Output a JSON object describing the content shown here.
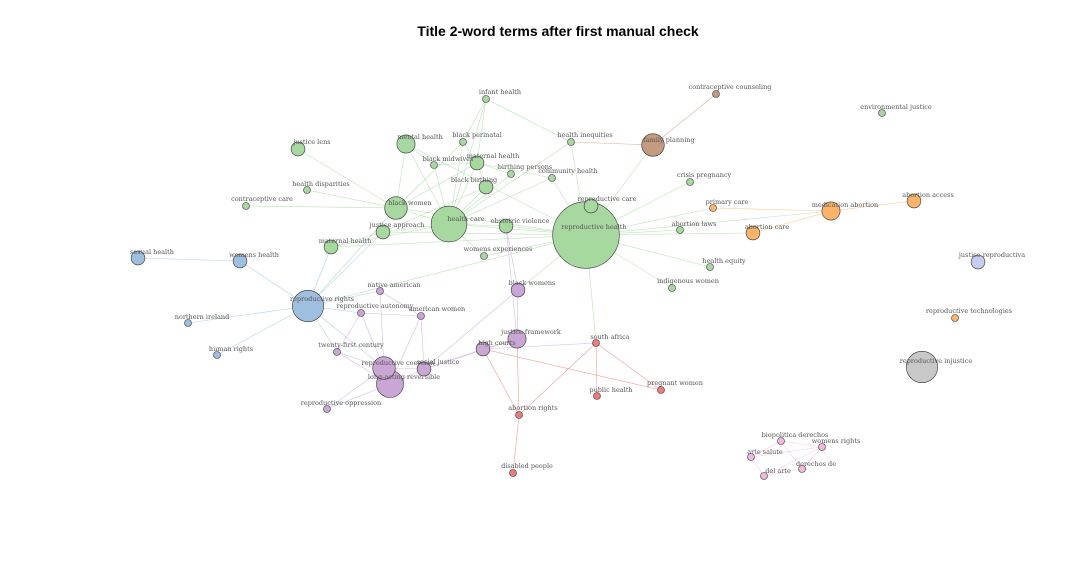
{
  "title": "Title 2-word terms after first manual check",
  "colors": {
    "green": "#a6d8a0",
    "orange": "#fdb46a",
    "blue": "#9ebfe0",
    "purple": "#c9a6d6",
    "red": "#f07a7a",
    "brown": "#c49a80",
    "pink": "#f3b8dd",
    "lavender": "#c7cdf0",
    "gray": "#c8c8c8"
  },
  "nodes": [
    {
      "id": "infant-health",
      "label": "infant health",
      "group": "green",
      "size": 1
    },
    {
      "id": "mental-health",
      "label": "mental health",
      "group": "green",
      "size": 3
    },
    {
      "id": "black-perinatal",
      "label": "black perinatal",
      "group": "green",
      "size": 1
    },
    {
      "id": "health-inequities",
      "label": "health inequities",
      "group": "green",
      "size": 1
    },
    {
      "id": "justice-lens",
      "label": "justice lens",
      "group": "green",
      "size": 2
    },
    {
      "id": "black-midwives",
      "label": "black midwives",
      "group": "green",
      "size": 1
    },
    {
      "id": "maternal-health-1",
      "label": "maternal health",
      "group": "green",
      "size": 2
    },
    {
      "id": "birthing-persons",
      "label": "birthing persons",
      "group": "green",
      "size": 1
    },
    {
      "id": "community-health",
      "label": "community health",
      "group": "green",
      "size": 1
    },
    {
      "id": "black-birthing",
      "label": "black birthing",
      "group": "green",
      "size": 2
    },
    {
      "id": "health-disparities",
      "label": "health disparities",
      "group": "green",
      "size": 1
    },
    {
      "id": "crisis-pregnancy",
      "label": "crisis pregnancy",
      "group": "green",
      "size": 1
    },
    {
      "id": "contraceptive-care",
      "label": "contraceptive care",
      "group": "green",
      "size": 1
    },
    {
      "id": "black-women",
      "label": "black women",
      "group": "green",
      "size": 4
    },
    {
      "id": "health-care",
      "label": "health care",
      "group": "green",
      "size": 7
    },
    {
      "id": "obstetric-violence",
      "label": "obstetric violence",
      "group": "green",
      "size": 2
    },
    {
      "id": "reproductive-care",
      "label": "reproductive care",
      "group": "green",
      "size": 2
    },
    {
      "id": "reproductive-health",
      "label": "reproductive health",
      "group": "green",
      "size": 14
    },
    {
      "id": "justice-approach",
      "label": "justice approach",
      "group": "green",
      "size": 2
    },
    {
      "id": "abortion-laws",
      "label": "abortion laws",
      "group": "green",
      "size": 1
    },
    {
      "id": "maternal-health-2",
      "label": "maternal health",
      "group": "green",
      "size": 2
    },
    {
      "id": "womens-experiences",
      "label": "womens experiences",
      "group": "green",
      "size": 1
    },
    {
      "id": "health-equity",
      "label": "health equity",
      "group": "green",
      "size": 1
    },
    {
      "id": "indigenous-women",
      "label": "indigenous women",
      "group": "green",
      "size": 1
    },
    {
      "id": "family-planning",
      "label": "family planning",
      "group": "brown",
      "size": 4
    },
    {
      "id": "contraceptive-counseling",
      "label": "contraceptive counseling",
      "group": "brown",
      "size": 1
    },
    {
      "id": "primary-care",
      "label": "primary care",
      "group": "orange",
      "size": 1
    },
    {
      "id": "medication-abortion",
      "label": "medication abortion",
      "group": "orange",
      "size": 3
    },
    {
      "id": "abortion-access",
      "label": "abortion access",
      "group": "orange",
      "size": 2
    },
    {
      "id": "abortion-care",
      "label": "abortion care",
      "group": "orange",
      "size": 2
    },
    {
      "id": "sexual-health",
      "label": "sexual health",
      "group": "blue",
      "size": 2
    },
    {
      "id": "womens-health",
      "label": "womens health",
      "group": "blue",
      "size": 2
    },
    {
      "id": "reproductive-rights",
      "label": "reproductive rights",
      "group": "blue",
      "size": 6
    },
    {
      "id": "northern-ireland",
      "label": "northern ireland",
      "group": "blue",
      "size": 1
    },
    {
      "id": "human-rights",
      "label": "human rights",
      "group": "blue",
      "size": 1
    },
    {
      "id": "native-american",
      "label": "native american",
      "group": "purple",
      "size": 1
    },
    {
      "id": "black-womens",
      "label": "black womens",
      "group": "purple",
      "size": 2
    },
    {
      "id": "reproductive-autonomy",
      "label": "reproductive autonomy",
      "group": "purple",
      "size": 1
    },
    {
      "id": "american-women",
      "label": "american women",
      "group": "purple",
      "size": 1
    },
    {
      "id": "justice-framework",
      "label": "justice framework",
      "group": "purple",
      "size": 3
    },
    {
      "id": "twenty-first-century",
      "label": "twenty-first century",
      "group": "purple",
      "size": 1
    },
    {
      "id": "high-courts",
      "label": "high courts",
      "group": "purple",
      "size": 2
    },
    {
      "id": "reproductive-coercion",
      "label": "reproductive coercion",
      "group": "purple",
      "size": 4
    },
    {
      "id": "social-justice",
      "label": "social justice",
      "group": "purple",
      "size": 2
    },
    {
      "id": "long-acting-reversible",
      "label": "long-acting reversible",
      "group": "purple",
      "size": 5
    },
    {
      "id": "reproductive-oppression",
      "label": "reproductive oppression",
      "group": "purple",
      "size": 1
    },
    {
      "id": "south-africa",
      "label": "south africa",
      "group": "red",
      "size": 1
    },
    {
      "id": "pregnant-women",
      "label": "pregnant women",
      "group": "red",
      "size": 1
    },
    {
      "id": "public-health",
      "label": "public health",
      "group": "red",
      "size": 1
    },
    {
      "id": "abortion-rights",
      "label": "abortion rights",
      "group": "red",
      "size": 1
    },
    {
      "id": "disabled-people",
      "label": "disabled people",
      "group": "red",
      "size": 1
    },
    {
      "id": "environmental-justice",
      "label": "environmental justice",
      "group": "green",
      "size": 1
    },
    {
      "id": "justice-reproductiva",
      "label": "justice reproductiva",
      "group": "lavender",
      "size": 2
    },
    {
      "id": "reproductive-technologies",
      "label": "reproductive technologies",
      "group": "orange",
      "size": 1
    },
    {
      "id": "reproductive-injustice",
      "label": "reproductive injustice",
      "group": "gray",
      "size": 6
    },
    {
      "id": "biopolitica-derechos",
      "label": "biopolitica derechos",
      "group": "pink",
      "size": 1
    },
    {
      "id": "womens-rights",
      "label": "womens rights",
      "group": "pink",
      "size": 1
    },
    {
      "id": "arte-salute",
      "label": "arte salute",
      "group": "pink",
      "size": 1
    },
    {
      "id": "derechos-de",
      "label": "derechos de",
      "group": "pink",
      "size": 1
    },
    {
      "id": "del-arte",
      "label": "del arte",
      "group": "pink",
      "size": 1
    }
  ],
  "edges": [
    [
      "reproductive-health",
      "health-care"
    ],
    [
      "reproductive-health",
      "black-women"
    ],
    [
      "reproductive-health",
      "obstetric-violence"
    ],
    [
      "reproductive-health",
      "reproductive-care"
    ],
    [
      "reproductive-health",
      "family-planning"
    ],
    [
      "reproductive-health",
      "crisis-pregnancy"
    ],
    [
      "reproductive-health",
      "primary-care"
    ],
    [
      "reproductive-health",
      "abortion-laws"
    ],
    [
      "reproductive-health",
      "abortion-care"
    ],
    [
      "reproductive-health",
      "medication-abortion"
    ],
    [
      "reproductive-health",
      "health-equity"
    ],
    [
      "reproductive-health",
      "indigenous-women"
    ],
    [
      "reproductive-health",
      "womens-experiences"
    ],
    [
      "reproductive-health",
      "reproductive-rights"
    ],
    [
      "reproductive-health",
      "black-womens"
    ],
    [
      "reproductive-health",
      "south-africa"
    ],
    [
      "reproductive-health",
      "justice-approach"
    ],
    [
      "reproductive-health",
      "mental-health"
    ],
    [
      "reproductive-health",
      "health-inequities"
    ],
    [
      "reproductive-health",
      "community-health"
    ],
    [
      "reproductive-health",
      "maternal-health-2"
    ],
    [
      "health-care",
      "black-women"
    ],
    [
      "health-care",
      "mental-health"
    ],
    [
      "health-care",
      "maternal-health-1"
    ],
    [
      "health-care",
      "black-midwives"
    ],
    [
      "health-care",
      "black-perinatal"
    ],
    [
      "health-care",
      "black-birthing"
    ],
    [
      "health-care",
      "birthing-persons"
    ],
    [
      "health-care",
      "community-health"
    ],
    [
      "health-care",
      "justice-approach"
    ],
    [
      "health-care",
      "obstetric-violence"
    ],
    [
      "health-care",
      "womens-experiences"
    ],
    [
      "health-care",
      "maternal-health-2"
    ],
    [
      "health-care",
      "infant-health"
    ],
    [
      "health-care",
      "health-inequities"
    ],
    [
      "black-women",
      "justice-lens"
    ],
    [
      "black-women",
      "health-disparities"
    ],
    [
      "black-women",
      "contraceptive-care"
    ],
    [
      "black-women",
      "mental-health"
    ],
    [
      "black-women",
      "maternal-health-1"
    ],
    [
      "black-women",
      "black-perinatal"
    ],
    [
      "justice-approach",
      "maternal-health-2"
    ],
    [
      "justice-approach",
      "black-birthing"
    ],
    [
      "justice-approach",
      "reproductive-rights"
    ],
    [
      "maternal-health-1",
      "black-perinatal"
    ],
    [
      "maternal-health-1",
      "black-midwives"
    ],
    [
      "maternal-health-1",
      "birthing-persons"
    ],
    [
      "maternal-health-1",
      "community-health"
    ],
    [
      "maternal-health-1",
      "black-birthing"
    ],
    [
      "maternal-health-1",
      "infant-health"
    ],
    [
      "mental-health",
      "black-midwives"
    ],
    [
      "black-perinatal",
      "infant-health"
    ],
    [
      "health-inequities",
      "infant-health"
    ],
    [
      "family-planning",
      "contraceptive-counseling"
    ],
    [
      "family-planning",
      "health-inequities"
    ],
    [
      "medication-abortion",
      "primary-care"
    ],
    [
      "medication-abortion",
      "abortion-access"
    ],
    [
      "medication-abortion",
      "abortion-care"
    ],
    [
      "sexual-health",
      "womens-health"
    ],
    [
      "womens-health",
      "reproductive-rights"
    ],
    [
      "reproductive-rights",
      "northern-ireland"
    ],
    [
      "reproductive-rights",
      "human-rights"
    ],
    [
      "reproductive-rights",
      "reproductive-autonomy"
    ],
    [
      "reproductive-rights",
      "native-american"
    ],
    [
      "reproductive-rights",
      "twenty-first-century"
    ],
    [
      "reproductive-rights",
      "reproductive-coercion"
    ],
    [
      "reproductive-rights",
      "maternal-health-2"
    ],
    [
      "reproductive-rights",
      "black-women"
    ],
    [
      "reproductive-autonomy",
      "twenty-first-century"
    ],
    [
      "reproductive-autonomy",
      "reproductive-coercion"
    ],
    [
      "reproductive-autonomy",
      "american-women"
    ],
    [
      "native-american",
      "american-women"
    ],
    [
      "native-american",
      "reproductive-coercion"
    ],
    [
      "american-women",
      "social-justice"
    ],
    [
      "american-women",
      "long-acting-reversible"
    ],
    [
      "reproductive-coercion",
      "long-acting-reversible"
    ],
    [
      "reproductive-coercion",
      "social-justice"
    ],
    [
      "reproductive-coercion",
      "twenty-first-century"
    ],
    [
      "reproductive-coercion",
      "reproductive-oppression"
    ],
    [
      "long-acting-reversible",
      "social-justice"
    ],
    [
      "long-acting-reversible",
      "twenty-first-century"
    ],
    [
      "long-acting-reversible",
      "reproductive-oppression"
    ],
    [
      "social-justice",
      "high-courts"
    ],
    [
      "social-justice",
      "justice-framework"
    ],
    [
      "social-justice",
      "black-womens"
    ],
    [
      "high-courts",
      "justice-framework"
    ],
    [
      "high-courts",
      "south-africa"
    ],
    [
      "justice-framework",
      "black-womens"
    ],
    [
      "justice-framework",
      "obstetric-violence"
    ],
    [
      "black-womens",
      "obstetric-violence"
    ],
    [
      "south-africa",
      "pregnant-women"
    ],
    [
      "south-africa",
      "public-health"
    ],
    [
      "south-africa",
      "abortion-rights"
    ],
    [
      "abortion-rights",
      "disabled-people"
    ],
    [
      "abortion-rights",
      "high-courts"
    ],
    [
      "abortion-rights",
      "justice-framework"
    ],
    [
      "pregnant-women",
      "high-courts"
    ],
    [
      "biopolitica-derechos",
      "womens-rights"
    ],
    [
      "biopolitica-derechos",
      "arte-salute"
    ],
    [
      "biopolitica-derechos",
      "derechos-de"
    ],
    [
      "arte-salute",
      "del-arte"
    ],
    [
      "arte-salute",
      "womens-rights"
    ],
    [
      "womens-rights",
      "derechos-de"
    ],
    [
      "derechos-de",
      "del-arte"
    ],
    [
      "del-arte",
      "womens-rights"
    ]
  ]
}
